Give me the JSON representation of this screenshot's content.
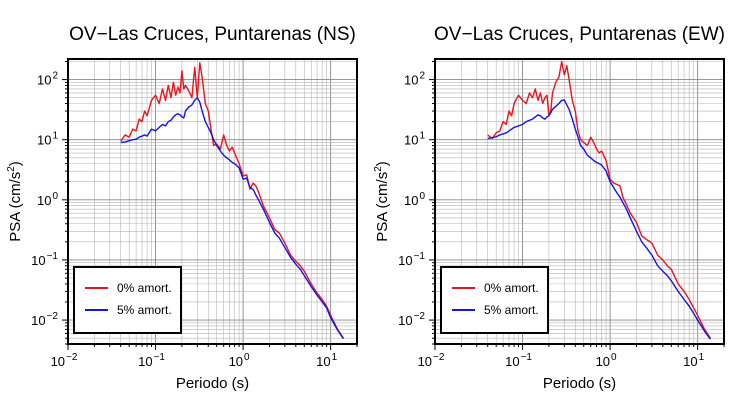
{
  "chart_data": [
    {
      "type": "line",
      "title": "OV−Las Cruces, Puntarenas (NS)",
      "xlabel": "Periodo (s)",
      "ylabel_main": "PSA (cm/s",
      "ylabel_sup": "2",
      "ylabel_tail": ")",
      "x_scale": "log",
      "y_scale": "log",
      "xlim": [
        0.01,
        20
      ],
      "ylim": [
        0.004,
        220
      ],
      "grid": true,
      "legend_position": "bottom-left",
      "x_ticks": [
        {
          "base": "10",
          "exp": "−2",
          "value": 0.01
        },
        {
          "base": "10",
          "exp": "−1",
          "value": 0.1
        },
        {
          "base": "10",
          "exp": "0",
          "value": 1
        },
        {
          "base": "10",
          "exp": "1",
          "value": 10
        }
      ],
      "y_ticks": [
        {
          "base": "10",
          "exp": "−2",
          "value": 0.01
        },
        {
          "base": "10",
          "exp": "−1",
          "value": 0.1
        },
        {
          "base": "10",
          "exp": "0",
          "value": 1
        },
        {
          "base": "10",
          "exp": "1",
          "value": 10
        },
        {
          "base": "10",
          "exp": "2",
          "value": 100
        }
      ],
      "series": [
        {
          "name": "0% amort.",
          "color": "#e8141e",
          "x": [
            0.04,
            0.045,
            0.05,
            0.055,
            0.06,
            0.065,
            0.07,
            0.075,
            0.08,
            0.09,
            0.1,
            0.11,
            0.12,
            0.13,
            0.14,
            0.15,
            0.16,
            0.17,
            0.18,
            0.19,
            0.2,
            0.21,
            0.22,
            0.24,
            0.26,
            0.28,
            0.3,
            0.32,
            0.34,
            0.37,
            0.4,
            0.43,
            0.46,
            0.5,
            0.55,
            0.6,
            0.65,
            0.7,
            0.75,
            0.8,
            0.9,
            1.0,
            1.1,
            1.2,
            1.3,
            1.4,
            1.5,
            1.7,
            2.0,
            2.3,
            2.6,
            3.0,
            3.5,
            4.0,
            4.5,
            5.0,
            6.0,
            7.0,
            8.0,
            9.0,
            10.0,
            12.0,
            14.0
          ],
          "y": [
            9.5,
            12,
            11,
            15,
            14,
            22,
            20,
            30,
            25,
            45,
            55,
            40,
            70,
            45,
            80,
            50,
            90,
            55,
            75,
            60,
            140,
            70,
            80,
            65,
            50,
            160,
            50,
            190,
            110,
            40,
            30,
            15,
            8,
            8.5,
            7,
            12,
            8,
            6.5,
            7.5,
            6,
            4,
            2.5,
            2.6,
            1.5,
            1.9,
            1.7,
            1.35,
            0.8,
            0.5,
            0.32,
            0.28,
            0.19,
            0.12,
            0.095,
            0.08,
            0.065,
            0.04,
            0.028,
            0.022,
            0.017,
            0.012,
            0.007,
            0.005
          ]
        },
        {
          "name": "5% amort.",
          "color": "#1414e8",
          "x": [
            0.04,
            0.045,
            0.05,
            0.055,
            0.06,
            0.065,
            0.07,
            0.075,
            0.08,
            0.09,
            0.1,
            0.11,
            0.12,
            0.13,
            0.14,
            0.15,
            0.16,
            0.17,
            0.18,
            0.19,
            0.2,
            0.21,
            0.22,
            0.24,
            0.26,
            0.28,
            0.3,
            0.32,
            0.34,
            0.37,
            0.4,
            0.43,
            0.46,
            0.5,
            0.55,
            0.6,
            0.65,
            0.7,
            0.75,
            0.8,
            0.9,
            1.0,
            1.1,
            1.2,
            1.3,
            1.4,
            1.5,
            1.7,
            2.0,
            2.3,
            2.6,
            3.0,
            3.5,
            4.0,
            4.5,
            5.0,
            6.0,
            7.0,
            8.0,
            9.0,
            10.0,
            12.0,
            14.0
          ],
          "y": [
            9,
            9.2,
            9.6,
            10,
            10.2,
            11,
            11.5,
            12,
            11.5,
            15,
            14,
            16,
            18,
            17,
            20,
            21,
            24,
            26,
            27,
            26,
            24,
            23,
            30,
            35,
            38,
            45,
            50,
            42,
            30,
            20,
            16,
            13,
            10,
            8,
            6.5,
            5.5,
            5,
            4.6,
            4.2,
            4,
            3.4,
            2.2,
            2.3,
            1.6,
            1.5,
            1.2,
            1.0,
            0.7,
            0.42,
            0.28,
            0.23,
            0.16,
            0.11,
            0.085,
            0.07,
            0.055,
            0.036,
            0.026,
            0.02,
            0.016,
            0.011,
            0.0068,
            0.0049
          ]
        }
      ]
    },
    {
      "type": "line",
      "title": "OV−Las Cruces, Puntarenas (EW)",
      "xlabel": "Periodo (s)",
      "ylabel_main": "PSA (cm/s",
      "ylabel_sup": "2",
      "ylabel_tail": ")",
      "x_scale": "log",
      "y_scale": "log",
      "xlim": [
        0.01,
        20
      ],
      "ylim": [
        0.004,
        220
      ],
      "grid": true,
      "legend_position": "bottom-left",
      "x_ticks": [
        {
          "base": "10",
          "exp": "−2",
          "value": 0.01
        },
        {
          "base": "10",
          "exp": "−1",
          "value": 0.1
        },
        {
          "base": "10",
          "exp": "0",
          "value": 1
        },
        {
          "base": "10",
          "exp": "1",
          "value": 10
        }
      ],
      "y_ticks": [
        {
          "base": "10",
          "exp": "−2",
          "value": 0.01
        },
        {
          "base": "10",
          "exp": "−1",
          "value": 0.1
        },
        {
          "base": "10",
          "exp": "0",
          "value": 1
        },
        {
          "base": "10",
          "exp": "1",
          "value": 10
        },
        {
          "base": "10",
          "exp": "2",
          "value": 100
        }
      ],
      "series": [
        {
          "name": "0% amort.",
          "color": "#e8141e",
          "x": [
            0.04,
            0.045,
            0.05,
            0.055,
            0.06,
            0.065,
            0.07,
            0.075,
            0.08,
            0.09,
            0.1,
            0.11,
            0.12,
            0.13,
            0.14,
            0.15,
            0.16,
            0.17,
            0.18,
            0.19,
            0.2,
            0.21,
            0.22,
            0.24,
            0.26,
            0.28,
            0.3,
            0.32,
            0.34,
            0.37,
            0.4,
            0.43,
            0.46,
            0.5,
            0.55,
            0.6,
            0.65,
            0.7,
            0.75,
            0.8,
            0.9,
            1.0,
            1.1,
            1.2,
            1.3,
            1.4,
            1.5,
            1.7,
            2.0,
            2.3,
            2.6,
            3.0,
            3.5,
            4.0,
            4.5,
            5.0,
            6.0,
            7.0,
            8.0,
            9.0,
            10.0,
            12.0,
            14.0
          ],
          "y": [
            12,
            10.5,
            13,
            14,
            20,
            18,
            30,
            25,
            40,
            55,
            45,
            40,
            60,
            50,
            70,
            45,
            60,
            40,
            50,
            55,
            25,
            30,
            60,
            90,
            110,
            200,
            120,
            170,
            100,
            45,
            30,
            14,
            10,
            9,
            8,
            11,
            9,
            7,
            6,
            6.5,
            4.5,
            2.2,
            1.9,
            1.8,
            1.7,
            1.1,
            0.9,
            0.6,
            0.42,
            0.25,
            0.22,
            0.19,
            0.12,
            0.1,
            0.08,
            0.07,
            0.04,
            0.03,
            0.022,
            0.016,
            0.012,
            0.007,
            0.005
          ]
        },
        {
          "name": "5% amort.",
          "color": "#1414e8",
          "x": [
            0.04,
            0.045,
            0.05,
            0.055,
            0.06,
            0.065,
            0.07,
            0.075,
            0.08,
            0.09,
            0.1,
            0.11,
            0.12,
            0.13,
            0.14,
            0.15,
            0.16,
            0.17,
            0.18,
            0.19,
            0.2,
            0.21,
            0.22,
            0.24,
            0.26,
            0.28,
            0.3,
            0.32,
            0.34,
            0.37,
            0.4,
            0.43,
            0.46,
            0.5,
            0.55,
            0.6,
            0.65,
            0.7,
            0.75,
            0.8,
            0.9,
            1.0,
            1.1,
            1.2,
            1.3,
            1.4,
            1.5,
            1.7,
            2.0,
            2.3,
            2.6,
            3.0,
            3.5,
            4.0,
            4.5,
            5.0,
            6.0,
            7.0,
            8.0,
            9.0,
            10.0,
            12.0,
            14.0
          ],
          "y": [
            10.5,
            10.8,
            11.2,
            12,
            12.5,
            13,
            14,
            15,
            16,
            17,
            18,
            20,
            21,
            22,
            24,
            26,
            25,
            23,
            22,
            24,
            25,
            28,
            32,
            36,
            40,
            45,
            46,
            38,
            32,
            22,
            15,
            11,
            8,
            7,
            5.5,
            5,
            4.5,
            4.2,
            4,
            3.8,
            3,
            2,
            1.6,
            1.3,
            1.1,
            0.9,
            0.75,
            0.5,
            0.3,
            0.2,
            0.16,
            0.12,
            0.08,
            0.065,
            0.055,
            0.045,
            0.03,
            0.022,
            0.017,
            0.013,
            0.01,
            0.0065,
            0.0048
          ]
        }
      ]
    }
  ]
}
